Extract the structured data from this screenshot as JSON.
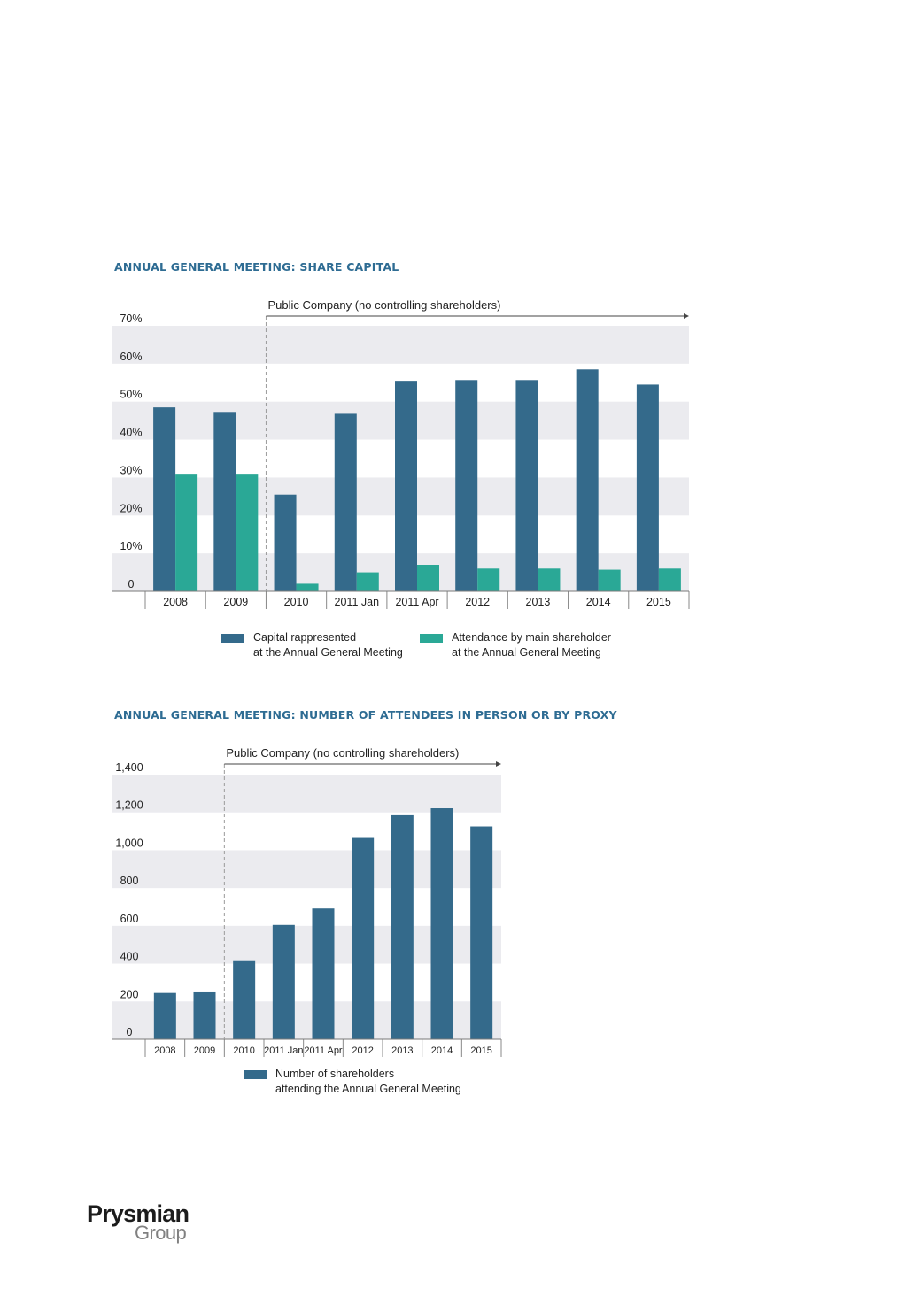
{
  "colors": {
    "capital": "#346a8b",
    "attendance": "#2aa896",
    "band": "#ebebef",
    "title": "#2e6c93"
  },
  "chart_data": [
    {
      "type": "bar",
      "title": "ANNUAL GENERAL MEETING: SHARE CAPITAL",
      "annotation": "Public Company (no controlling shareholders)",
      "categories": [
        "2008",
        "2009",
        "2010",
        "2011 Jan",
        "2011 Apr",
        "2012",
        "2013",
        "2014",
        "2015"
      ],
      "series": [
        {
          "name": "Capital rappresented\nat the Annual General Meeting",
          "values": [
            48.5,
            47.3,
            25.5,
            46.8,
            55.5,
            55.7,
            55.7,
            58.5,
            54.5
          ]
        },
        {
          "name": "Attendance by main shareholder\nat the Annual General Meeting",
          "values": [
            31.0,
            31.0,
            2.0,
            5.0,
            7.0,
            6.0,
            6.0,
            5.7,
            6.0
          ]
        }
      ],
      "yticks": [
        "0",
        "10%",
        "20%",
        "30%",
        "40%",
        "50%",
        "60%",
        "70%"
      ],
      "ylim": [
        0,
        70
      ],
      "grid": "alternating horizontal bands",
      "legend": "bottom"
    },
    {
      "type": "bar",
      "title": "ANNUAL GENERAL MEETING: NUMBER OF ATTENDEES IN PERSON OR BY PROXY",
      "annotation": "Public Company (no controlling shareholders)",
      "categories": [
        "2008",
        "2009",
        "2010",
        "2011 Jan",
        "2011 Apr",
        "2012",
        "2013",
        "2014",
        "2015"
      ],
      "series": [
        {
          "name": "Number of shareholders\nattending the Annual General Meeting",
          "values": [
            245,
            253,
            418,
            605,
            692,
            1065,
            1185,
            1222,
            1126
          ]
        }
      ],
      "yticks": [
        "0",
        "200",
        "400",
        "600",
        "800",
        "1,000",
        "1,200",
        "1,400"
      ],
      "ylim": [
        0,
        1400
      ],
      "grid": "alternating horizontal bands",
      "legend": "bottom"
    }
  ],
  "logo": {
    "main": "Prysmian",
    "sub": "Group"
  }
}
